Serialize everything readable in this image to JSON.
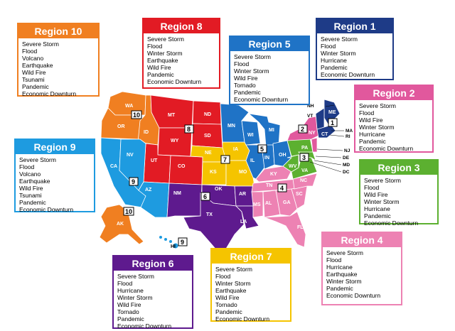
{
  "regions": [
    {
      "id": "r10",
      "title": "Region 10",
      "number": "10",
      "color": "#f07f21",
      "hazards": [
        "Severe Storm",
        "Flood",
        "Volcano",
        "Earthquake",
        "Wild Fire",
        "Tsunami",
        "Pandemic",
        "Economic Downturn"
      ]
    },
    {
      "id": "r8",
      "title": "Region 8",
      "number": "8",
      "color": "#e21b24",
      "hazards": [
        "Severe Storm",
        "Flood",
        "Winter Storm",
        "Earthquake",
        "Wild Fire",
        "Pandemic",
        "Economic Downturn"
      ]
    },
    {
      "id": "r5",
      "title": "Region 5",
      "number": "5",
      "color": "#1f73c6",
      "hazards": [
        "Severe Storm",
        "Flood",
        "Winter Storm",
        "Wild Fire",
        "Tornado",
        "Pandemic",
        "Economic Downturn"
      ]
    },
    {
      "id": "r1",
      "title": "Region 1",
      "number": "1",
      "color": "#1e3b87",
      "hazards": [
        "Severe Storm",
        "Flood",
        "Winter Storm",
        "Hurricane",
        "Pandemic",
        "Economic Downturn"
      ]
    },
    {
      "id": "r2",
      "title": "Region 2",
      "number": "2",
      "color": "#e1589d",
      "hazards": [
        "Severe Storm",
        "Flood",
        "Wild Fire",
        "Winter Storm",
        "Hurricane",
        "Pandemic",
        "Economic Downturn"
      ]
    },
    {
      "id": "r9",
      "title": "Region 9",
      "number": "9",
      "color": "#1e9be0",
      "hazards": [
        "Severe Storm",
        "Flood",
        "Volcano",
        "Earthquake",
        "Wild Fire",
        "Tsunami",
        "Pandemic",
        "Economic Downturn"
      ]
    },
    {
      "id": "r3",
      "title": "Region 3",
      "number": "3",
      "color": "#5cb030",
      "hazards": [
        "Severe Storm",
        "Flood",
        "Wild Fire",
        "Winter Storm",
        "Hurricane",
        "Pandemic",
        "Economic Downturn"
      ]
    },
    {
      "id": "r4",
      "title": "Region 4",
      "number": "4",
      "color": "#ed82b3",
      "hazards": [
        "Severe Storm",
        "Flood",
        "Hurricane",
        "Earthquake",
        "Winter Storm",
        "Pandemic",
        "Economic Downturn"
      ]
    },
    {
      "id": "r6",
      "title": "Region 6",
      "number": "6",
      "color": "#5e1a8e",
      "hazards": [
        "Severe Storm",
        "Flood",
        "Hurricane",
        "Winter Storm",
        "Wild Fire",
        "Tornado",
        "Pandemic",
        "Economic Downturn"
      ]
    },
    {
      "id": "r7",
      "title": "Region 7",
      "number": "7",
      "color": "#f5c400",
      "hazards": [
        "Severe Storm",
        "Flood",
        "Winter Storm",
        "Earthquake",
        "Wild Fire",
        "Tornado",
        "Pandemic",
        "Economic Downturn"
      ]
    }
  ],
  "map_labels": {
    "WA": "WA",
    "OR": "OR",
    "ID": "ID",
    "CA": "CA",
    "NV": "NV",
    "AZ": "AZ",
    "AK": "AK",
    "HI": "HI",
    "MT": "MT",
    "WY": "WY",
    "UT": "UT",
    "CO": "CO",
    "ND": "ND",
    "SD": "SD",
    "NE": "NE",
    "KS": "KS",
    "IA": "IA",
    "MO": "MO",
    "NM": "NM",
    "TX": "TX",
    "OK": "OK",
    "AR": "AR",
    "LA": "LA",
    "MN": "MN",
    "WI": "WI",
    "MI": "MI",
    "IL": "IL",
    "IN": "IN",
    "OH": "OH",
    "KY": "KY",
    "TN": "TN",
    "MS": "MS",
    "AL": "AL",
    "GA": "GA",
    "FL": "FL",
    "SC": "SC",
    "NC": "NC",
    "VA": "VA",
    "WV": "WV",
    "PA": "PA",
    "NY": "NY",
    "ME": "ME",
    "NH": "NH",
    "VT": "VT",
    "MA": "MA",
    "RI": "RI",
    "CT": "CT",
    "NJ": "NJ",
    "DE": "DE",
    "MD": "MD",
    "DC": "DC"
  }
}
